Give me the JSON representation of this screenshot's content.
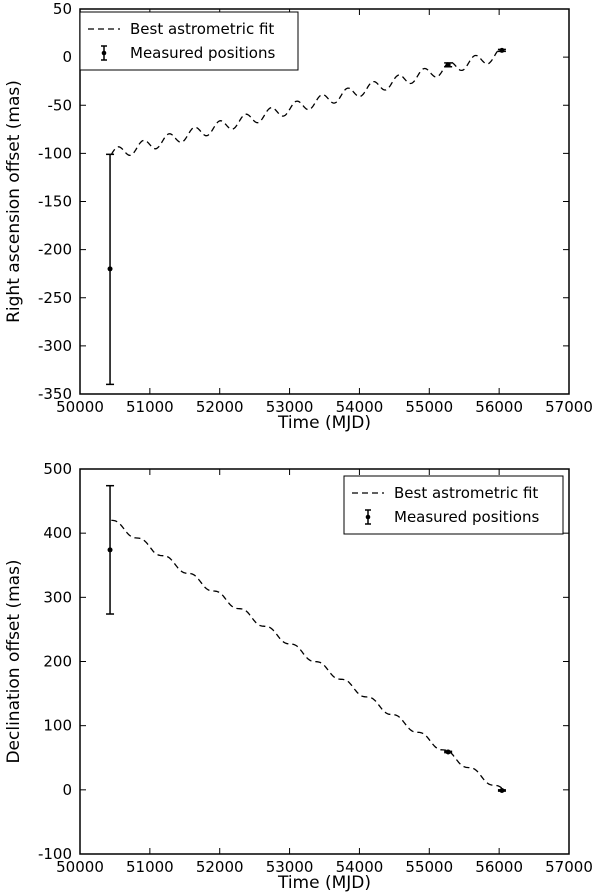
{
  "chart_data": [
    {
      "type": "line",
      "xlabel": "Time (MJD)",
      "ylabel": "Right ascension offset (mas)",
      "xlim": [
        50000,
        57000
      ],
      "ylim": [
        -350,
        50
      ],
      "xticks": [
        50000,
        51000,
        52000,
        53000,
        54000,
        55000,
        56000,
        57000
      ],
      "yticks": [
        50,
        0,
        -50,
        -100,
        -150,
        -200,
        -250,
        -300,
        -350
      ],
      "grid": false,
      "legend": {
        "position": "top-left",
        "entries": [
          "Best astrometric fit",
          "Measured positions"
        ]
      },
      "fit_line": {
        "name": "Best astrometric fit",
        "style": "dashed",
        "x_start": 50450,
        "x_end": 56050,
        "trend_start": -101,
        "trend_end": 3,
        "oscillation_amplitude": 6,
        "period_days": 365.25
      },
      "measurements": {
        "name": "Measured positions",
        "points": [
          {
            "x": 50430,
            "y": -220,
            "yerr_low": -340,
            "yerr_high": -101
          },
          {
            "x": 55270,
            "y": -8,
            "yerr_low": -10,
            "yerr_high": -6
          },
          {
            "x": 56040,
            "y": 7,
            "yerr_low": 6,
            "yerr_high": 8
          }
        ]
      }
    },
    {
      "type": "line",
      "xlabel": "Time (MJD)",
      "ylabel": "Declination offset (mas)",
      "xlim": [
        50000,
        57000
      ],
      "ylim": [
        -100,
        500
      ],
      "xticks": [
        50000,
        51000,
        52000,
        53000,
        54000,
        55000,
        56000,
        57000
      ],
      "yticks": [
        500,
        400,
        300,
        200,
        100,
        0,
        -100
      ],
      "grid": false,
      "legend": {
        "position": "top-right",
        "entries": [
          "Best astrometric fit",
          "Measured positions"
        ]
      },
      "fit_line": {
        "name": "Best astrometric fit",
        "style": "dashed",
        "x_start": 50450,
        "x_end": 56050,
        "trend_start": 420,
        "trend_end": -2,
        "oscillation_amplitude": 4,
        "period_days": 365.25
      },
      "measurements": {
        "name": "Measured positions",
        "points": [
          {
            "x": 50430,
            "y": 374,
            "yerr_low": 274,
            "yerr_high": 474
          },
          {
            "x": 55270,
            "y": 59,
            "yerr_low": 58,
            "yerr_high": 60
          },
          {
            "x": 56040,
            "y": -1,
            "yerr_low": -2,
            "yerr_high": 0
          }
        ]
      }
    }
  ]
}
